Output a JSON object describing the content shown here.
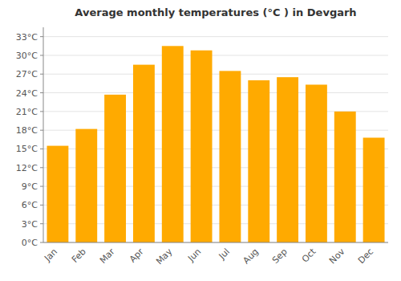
{
  "chart_data": {
    "type": "bar",
    "title": "Average monthly temperatures (°C ) in Devgarh",
    "categories": [
      "Jan",
      "Feb",
      "Mar",
      "Apr",
      "May",
      "Jun",
      "Jul",
      "Aug",
      "Sep",
      "Oct",
      "Nov",
      "Dec"
    ],
    "values": [
      15.5,
      18.2,
      23.7,
      28.5,
      31.5,
      30.8,
      27.5,
      26.0,
      26.5,
      25.3,
      21.0,
      16.8
    ],
    "color": "#FFAA00",
    "ylim": [
      0,
      34.5
    ],
    "yticks": [
      {
        "value": 0,
        "label": "0°C"
      },
      {
        "value": 3,
        "label": "3°C"
      },
      {
        "value": 6,
        "label": "6°C"
      },
      {
        "value": 9,
        "label": "9°C"
      },
      {
        "value": 12,
        "label": "12°C"
      },
      {
        "value": 15,
        "label": "15°C"
      },
      {
        "value": 18,
        "label": "18°C"
      },
      {
        "value": 21,
        "label": "21°C"
      },
      {
        "value": 24,
        "label": "24°C"
      },
      {
        "value": 27,
        "label": "27°C"
      },
      {
        "value": 30,
        "label": "30°C"
      },
      {
        "value": 33,
        "label": "33°C"
      }
    ],
    "grid": true
  }
}
